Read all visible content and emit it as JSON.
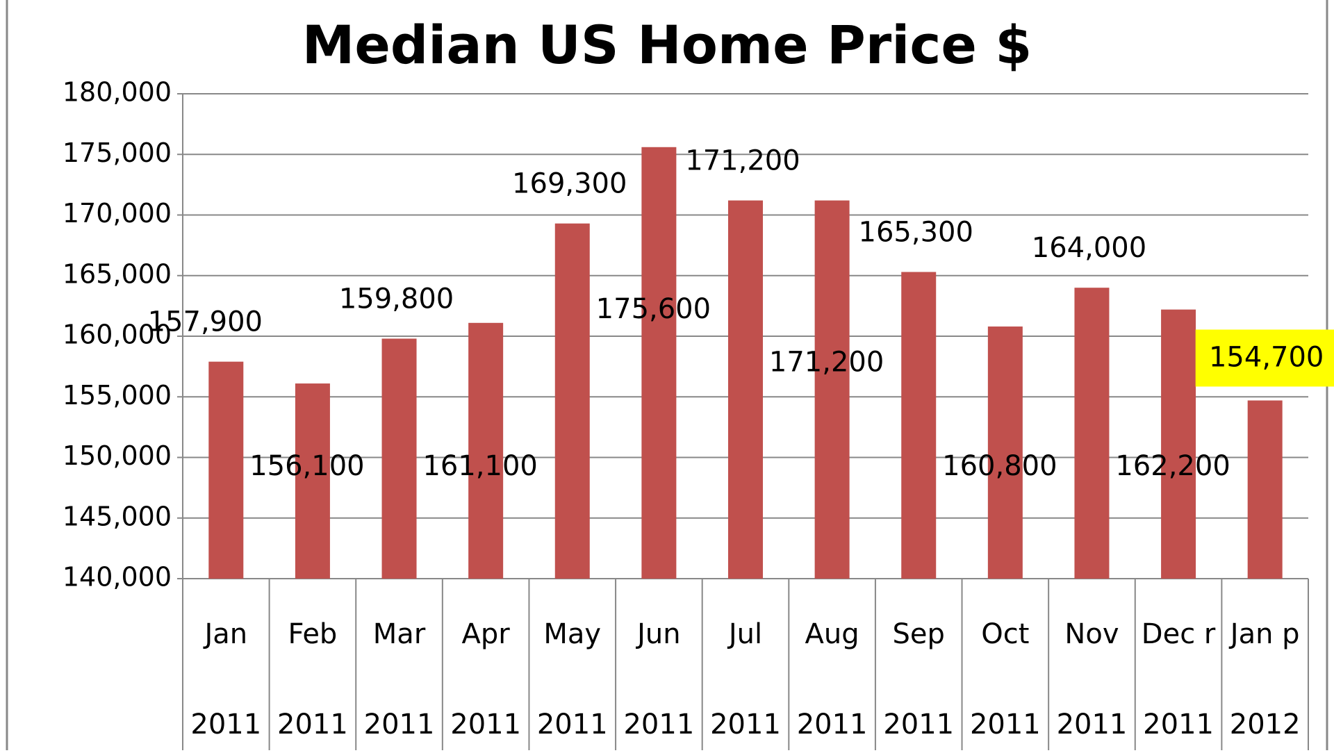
{
  "chart_data": {
    "type": "bar",
    "title": "Median US Home Price $",
    "categories": [
      {
        "month": "Jan",
        "year": "2011"
      },
      {
        "month": "Feb",
        "year": "2011"
      },
      {
        "month": "Mar",
        "year": "2011"
      },
      {
        "month": "Apr",
        "year": "2011"
      },
      {
        "month": "May",
        "year": "2011"
      },
      {
        "month": "Jun",
        "year": "2011"
      },
      {
        "month": "Jul",
        "year": "2011"
      },
      {
        "month": "Aug",
        "year": "2011"
      },
      {
        "month": "Sep",
        "year": "2011"
      },
      {
        "month": "Oct",
        "year": "2011"
      },
      {
        "month": "Nov",
        "year": "2011"
      },
      {
        "month": "Dec r",
        "year": "2011"
      },
      {
        "month": "Jan p",
        "year": "2012"
      }
    ],
    "values": [
      157900,
      156100,
      159800,
      161100,
      169300,
      175600,
      171200,
      171200,
      165300,
      160800,
      164000,
      162200,
      154700
    ],
    "value_labels": [
      "157,900",
      "156,100",
      "159,800",
      "161,100",
      "169,300",
      "175,600",
      "171,200",
      "171,200",
      "165,300",
      "160,800",
      "164,000",
      "162,200",
      "154,700"
    ],
    "color": "#c0504d",
    "ylim": [
      140000,
      180000
    ],
    "yticks": [
      {
        "value": 140000,
        "label": "140,000"
      },
      {
        "value": 145000,
        "label": "145,000"
      },
      {
        "value": 150000,
        "label": "150,000"
      },
      {
        "value": 155000,
        "label": "155,000"
      },
      {
        "value": 160000,
        "label": "160,000"
      },
      {
        "value": 165000,
        "label": "165,000"
      },
      {
        "value": 170000,
        "label": "170,000"
      },
      {
        "value": 175000,
        "label": "175,000"
      },
      {
        "value": 180000,
        "label": "180,000"
      }
    ],
    "grid": true,
    "highlighted_label": {
      "index": 12,
      "color": "#ffff00"
    }
  }
}
